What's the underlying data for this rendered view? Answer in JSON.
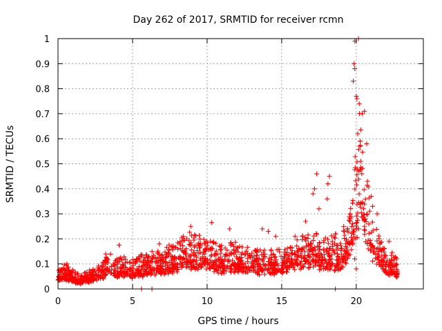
{
  "chart_data": {
    "type": "scatter",
    "title": "Day 262 of 2017, SRMTID for receiver rcmn",
    "xlabel": "GPS time / hours",
    "ylabel": "SRMTID / TECUs",
    "xlim": [
      0,
      24.5
    ],
    "ylim": [
      0,
      1
    ],
    "xticks": [
      0,
      5,
      10,
      15,
      20
    ],
    "yticks": [
      0,
      0.1,
      0.2,
      0.3,
      0.4,
      0.5,
      0.6,
      0.7,
      0.8,
      0.9,
      1
    ],
    "grid": true,
    "marker": "+",
    "color": "#ff0000",
    "envelope_points": [
      {
        "x": 0.0,
        "y": 0.05
      },
      {
        "x": 0.5,
        "y": 0.06
      },
      {
        "x": 1.0,
        "y": 0.045
      },
      {
        "x": 1.5,
        "y": 0.035
      },
      {
        "x": 2.0,
        "y": 0.045
      },
      {
        "x": 2.5,
        "y": 0.05
      },
      {
        "x": 3.0,
        "y": 0.07
      },
      {
        "x": 3.5,
        "y": 0.09
      },
      {
        "x": 4.0,
        "y": 0.08
      },
      {
        "x": 5.0,
        "y": 0.075
      },
      {
        "x": 6.0,
        "y": 0.09
      },
      {
        "x": 7.0,
        "y": 0.1
      },
      {
        "x": 8.0,
        "y": 0.12
      },
      {
        "x": 9.0,
        "y": 0.14
      },
      {
        "x": 10.0,
        "y": 0.13
      },
      {
        "x": 11.0,
        "y": 0.11
      },
      {
        "x": 12.0,
        "y": 0.12
      },
      {
        "x": 13.0,
        "y": 0.1
      },
      {
        "x": 14.0,
        "y": 0.1
      },
      {
        "x": 15.0,
        "y": 0.1
      },
      {
        "x": 16.0,
        "y": 0.14
      },
      {
        "x": 17.0,
        "y": 0.15
      },
      {
        "x": 17.5,
        "y": 0.14
      },
      {
        "x": 18.0,
        "y": 0.13
      },
      {
        "x": 19.0,
        "y": 0.13
      },
      {
        "x": 19.5,
        "y": 0.2
      },
      {
        "x": 20.0,
        "y": 0.35
      },
      {
        "x": 20.3,
        "y": 0.45
      },
      {
        "x": 20.6,
        "y": 0.35
      },
      {
        "x": 21.0,
        "y": 0.2
      },
      {
        "x": 21.5,
        "y": 0.15
      },
      {
        "x": 22.0,
        "y": 0.1
      },
      {
        "x": 22.8,
        "y": 0.08
      }
    ],
    "outlier_points": [
      {
        "x": 0.6,
        "y": 0.1
      },
      {
        "x": 3.2,
        "y": 0.14
      },
      {
        "x": 4.1,
        "y": 0.175
      },
      {
        "x": 6.8,
        "y": 0.18
      },
      {
        "x": 8.4,
        "y": 0.21
      },
      {
        "x": 8.9,
        "y": 0.25
      },
      {
        "x": 10.3,
        "y": 0.265
      },
      {
        "x": 11.5,
        "y": 0.24
      },
      {
        "x": 13.7,
        "y": 0.24
      },
      {
        "x": 14.1,
        "y": 0.23
      },
      {
        "x": 14.6,
        "y": 0.21
      },
      {
        "x": 15.9,
        "y": 0.21
      },
      {
        "x": 16.6,
        "y": 0.27
      },
      {
        "x": 17.1,
        "y": 0.38
      },
      {
        "x": 17.2,
        "y": 0.4
      },
      {
        "x": 17.35,
        "y": 0.46
      },
      {
        "x": 17.5,
        "y": 0.32
      },
      {
        "x": 18.1,
        "y": 0.42
      },
      {
        "x": 18.2,
        "y": 0.45
      },
      {
        "x": 18.05,
        "y": 0.36
      },
      {
        "x": 18.6,
        "y": 0.22
      },
      {
        "x": 19.2,
        "y": 0.23
      },
      {
        "x": 19.6,
        "y": 0.3
      },
      {
        "x": 19.8,
        "y": 0.83
      },
      {
        "x": 19.85,
        "y": 0.9
      },
      {
        "x": 19.9,
        "y": 0.88
      },
      {
        "x": 19.9,
        "y": 0.99
      },
      {
        "x": 20.0,
        "y": 0.77
      },
      {
        "x": 20.05,
        "y": 0.76
      },
      {
        "x": 20.15,
        "y": 1.0
      },
      {
        "x": 20.2,
        "y": 0.74
      },
      {
        "x": 20.1,
        "y": 0.62
      },
      {
        "x": 20.25,
        "y": 0.57
      },
      {
        "x": 20.3,
        "y": 0.51
      },
      {
        "x": 20.4,
        "y": 0.7
      },
      {
        "x": 20.55,
        "y": 0.71
      },
      {
        "x": 20.7,
        "y": 0.58
      },
      {
        "x": 20.75,
        "y": 0.43
      },
      {
        "x": 21.0,
        "y": 0.37
      },
      {
        "x": 21.1,
        "y": 0.33
      },
      {
        "x": 21.4,
        "y": 0.3
      },
      {
        "x": 22.2,
        "y": 0.19
      },
      {
        "x": 20.0,
        "y": 0.08
      },
      {
        "x": 19.9,
        "y": 0.12
      }
    ],
    "zero_points": [
      {
        "x": 5.6,
        "y": 0.0
      },
      {
        "x": 6.3,
        "y": 0.0
      },
      {
        "x": 18.6,
        "y": 0.0
      }
    ]
  }
}
